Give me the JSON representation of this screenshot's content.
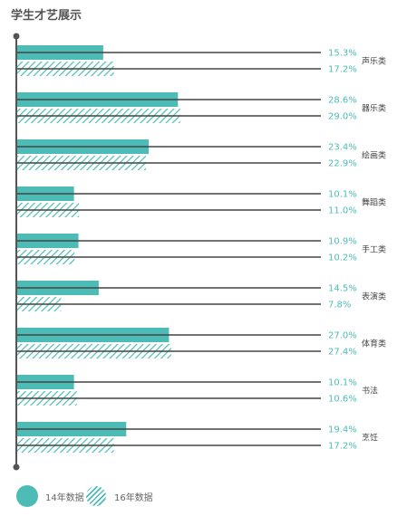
{
  "title": "学生才艺展示",
  "colors": {
    "accent": "#4dbcb6",
    "line": "#444444",
    "label": "#4dbcb6",
    "category": "#444444"
  },
  "legend": [
    {
      "name": "14年数据",
      "style": "solid"
    },
    {
      "name": "16年数据",
      "style": "hatched"
    }
  ],
  "chart_data": {
    "type": "bar",
    "orientation": "horizontal",
    "title": "学生才艺展示",
    "categories": [
      "声乐类",
      "器乐类",
      "绘画类",
      "舞蹈类",
      "手工类",
      "表演类",
      "体育类",
      "书法",
      "烹饪"
    ],
    "series": [
      {
        "name": "14年数据",
        "values": [
          15.3,
          28.6,
          23.4,
          10.1,
          10.9,
          14.5,
          27.0,
          10.1,
          19.4
        ],
        "labels": [
          "15.3%",
          "28.6%",
          "23.4%",
          "10.1%",
          "10.9%",
          "14.5%",
          "27.0%",
          "10.1%",
          "19.4%"
        ]
      },
      {
        "name": "16年数据",
        "values": [
          17.2,
          29.0,
          22.9,
          11.0,
          10.2,
          7.8,
          27.4,
          10.6,
          17.2
        ],
        "labels": [
          "17.2%",
          "29.0%",
          "22.9%",
          "11.0%",
          "10.2%",
          "7.8%",
          "27.4%",
          "10.6%",
          "17.2%"
        ]
      }
    ],
    "unit": "%",
    "xlim": [
      0,
      50
    ],
    "grid": false,
    "legend_position": "bottom-left"
  }
}
